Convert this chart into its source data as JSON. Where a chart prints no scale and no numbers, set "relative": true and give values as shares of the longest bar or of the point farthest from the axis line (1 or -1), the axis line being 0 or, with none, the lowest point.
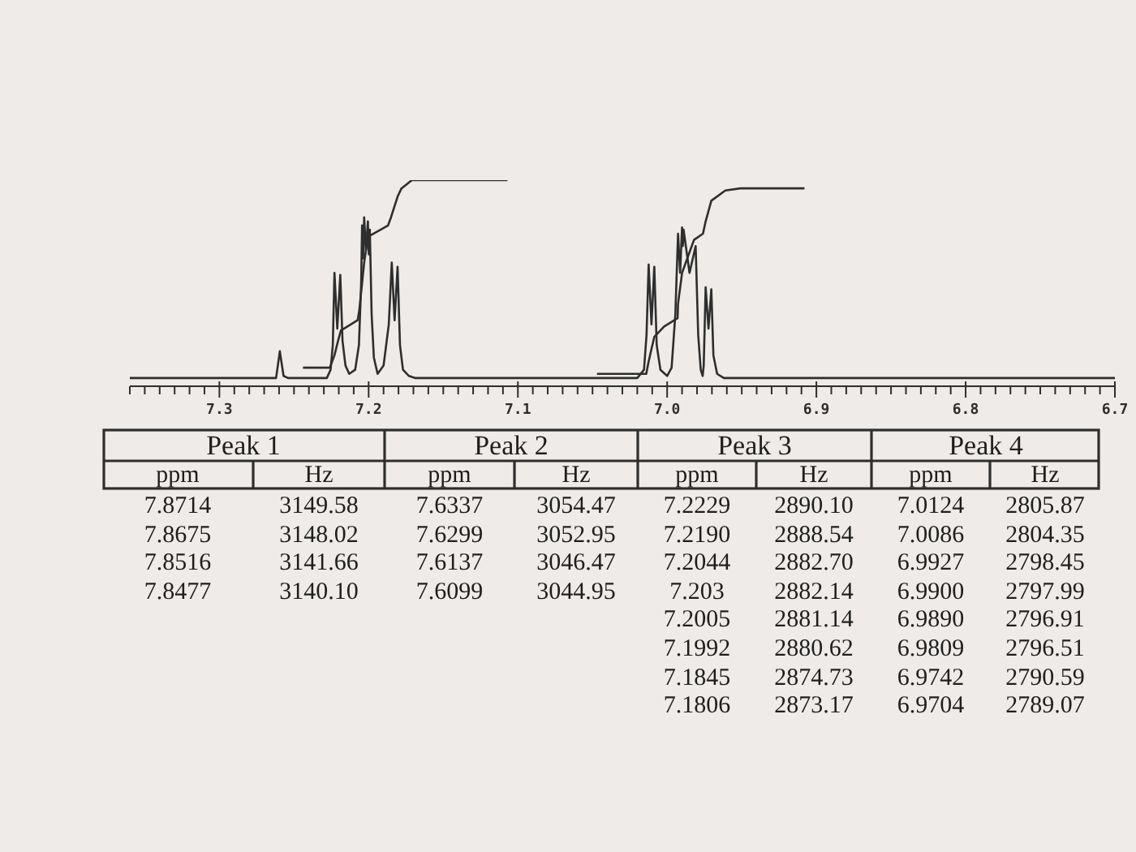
{
  "chart_data": {
    "type": "line",
    "relative": true,
    "xlim": [
      7.36,
      6.7
    ],
    "xticks": [
      {
        "value": 7.36,
        "label": null
      },
      {
        "value": 7.35,
        "label": null
      },
      {
        "value": 7.34,
        "label": null
      },
      {
        "value": 7.33,
        "label": null
      },
      {
        "value": 7.32,
        "label": null
      },
      {
        "value": 7.31,
        "label": null
      },
      7.3,
      {
        "value": 7.29,
        "label": null
      },
      {
        "value": 7.28,
        "label": null
      },
      {
        "value": 7.27,
        "label": null
      },
      {
        "value": 7.26,
        "label": null
      },
      {
        "value": 7.25,
        "label": null
      },
      {
        "value": 7.24,
        "label": null
      },
      {
        "value": 7.23,
        "label": null
      },
      {
        "value": 7.22,
        "label": null
      },
      {
        "value": 7.21,
        "label": null
      },
      7.2,
      {
        "value": 7.19,
        "label": null
      },
      {
        "value": 7.18,
        "label": null
      },
      {
        "value": 7.17,
        "label": null
      },
      {
        "value": 7.16,
        "label": null
      },
      {
        "value": 7.15,
        "label": null
      },
      {
        "value": 7.14,
        "label": null
      },
      {
        "value": 7.13,
        "label": null
      },
      {
        "value": 7.12,
        "label": null
      },
      {
        "value": 7.11,
        "label": null
      },
      7.1,
      {
        "value": 7.09,
        "label": null
      },
      {
        "value": 7.08,
        "label": null
      },
      {
        "value": 7.07,
        "label": null
      },
      {
        "value": 7.06,
        "label": null
      },
      {
        "value": 7.05,
        "label": null
      },
      {
        "value": 7.04,
        "label": null
      },
      {
        "value": 7.03,
        "label": null
      },
      {
        "value": 7.02,
        "label": null
      },
      {
        "value": 7.01,
        "label": null
      },
      {
        "value": 7.0,
        "label": "7.0"
      },
      {
        "value": 6.99,
        "label": null
      },
      {
        "value": 6.98,
        "label": null
      },
      {
        "value": 6.97,
        "label": null
      },
      {
        "value": 6.96,
        "label": null
      },
      {
        "value": 6.95,
        "label": null
      },
      {
        "value": 6.94,
        "label": null
      },
      {
        "value": 6.93,
        "label": null
      },
      {
        "value": 6.92,
        "label": null
      },
      {
        "value": 6.91,
        "label": null
      },
      6.9,
      {
        "value": 6.89,
        "label": null
      },
      {
        "value": 6.88,
        "label": null
      },
      {
        "value": 6.87,
        "label": null
      },
      {
        "value": 6.86,
        "label": null
      },
      {
        "value": 6.85,
        "label": null
      },
      {
        "value": 6.84,
        "label": null
      },
      {
        "value": 6.83,
        "label": null
      },
      {
        "value": 6.82,
        "label": null
      },
      {
        "value": 6.81,
        "label": null
      },
      6.8,
      {
        "value": 6.79,
        "label": null
      },
      {
        "value": 6.78,
        "label": null
      },
      {
        "value": 6.77,
        "label": null
      },
      {
        "value": 6.76,
        "label": null
      },
      {
        "value": 6.75,
        "label": null
      },
      {
        "value": 6.74,
        "label": null
      },
      {
        "value": 6.73,
        "label": null
      },
      {
        "value": 6.72,
        "label": null
      },
      {
        "value": 6.71,
        "label": null
      },
      6.7
    ],
    "series": [
      {
        "color": "#2e2e2e",
        "x": [
          7.36,
          7.262,
          7.2595,
          7.257,
          7.254,
          7.228,
          7.2255,
          7.224,
          7.2229,
          7.221,
          7.219,
          7.2175,
          7.2155,
          7.213,
          7.209,
          7.2065,
          7.205,
          7.2044,
          7.2037,
          7.203,
          7.2018,
          7.2005,
          7.1999,
          7.1992,
          7.198,
          7.1965,
          7.194,
          7.19,
          7.1865,
          7.1845,
          7.1826,
          7.1806,
          7.179,
          7.177,
          7.173,
          7.169,
          7.02,
          7.0155,
          7.0138,
          7.0124,
          7.0105,
          7.0086,
          7.007,
          7.0045,
          7.0,
          6.997,
          6.9945,
          6.9927,
          6.9913,
          6.99,
          6.9895,
          6.989,
          6.985,
          6.9809,
          6.9792,
          6.9775,
          6.9762,
          6.9755,
          6.9742,
          6.9723,
          6.9704,
          6.969,
          6.9665,
          6.962,
          6.7
        ],
        "values": [
          0.04,
          0.04,
          0.17,
          0.05,
          0.04,
          0.04,
          0.08,
          0.2,
          0.55,
          0.28,
          0.54,
          0.22,
          0.1,
          0.06,
          0.08,
          0.2,
          0.5,
          0.78,
          0.62,
          0.82,
          0.66,
          0.8,
          0.64,
          0.76,
          0.35,
          0.14,
          0.06,
          0.1,
          0.3,
          0.6,
          0.32,
          0.58,
          0.2,
          0.08,
          0.05,
          0.04,
          0.04,
          0.08,
          0.25,
          0.59,
          0.3,
          0.58,
          0.2,
          0.08,
          0.05,
          0.09,
          0.35,
          0.74,
          0.55,
          0.77,
          0.68,
          0.76,
          0.55,
          0.68,
          0.25,
          0.08,
          0.05,
          0.1,
          0.48,
          0.28,
          0.47,
          0.15,
          0.06,
          0.04,
          0.04
        ]
      },
      {
        "color": "#2e2e2e",
        "x": [
          7.244,
          7.226,
          7.2229,
          7.2205,
          7.2186,
          7.2074,
          7.2064,
          7.2044,
          7.203,
          7.201,
          7.1993,
          7.187,
          7.185,
          7.1806,
          7.178,
          7.171,
          7.107,
          7.08,
          7.047,
          7.014,
          7.0124,
          7.0086,
          7.002,
          6.993,
          6.9927,
          6.99,
          6.982,
          6.976,
          6.9742,
          6.9704,
          6.961,
          6.951,
          6.908
        ],
        "values": [
          0.09,
          0.09,
          0.15,
          0.22,
          0.27,
          0.32,
          0.36,
          0.5,
          0.6,
          0.7,
          0.73,
          0.78,
          0.82,
          0.92,
          0.96,
          1.0,
          1.0,
          null,
          0.06,
          0.06,
          0.12,
          0.24,
          0.29,
          0.33,
          0.4,
          0.55,
          0.71,
          0.74,
          0.8,
          0.9,
          0.95,
          0.96,
          0.96
        ]
      }
    ],
    "annotations": [
      "Peak 1",
      "Peak 2",
      "Peak 3",
      "Peak 4",
      "ppm",
      "Hz",
      "ppm",
      "Hz",
      "ppm",
      "Hz",
      "ppm",
      "Hz",
      "7.8714\n7.8675\n7.8516\n7.8477",
      "3149.58\n3148.02\n3141.66\n3140.10",
      "7.6337\n7.6299\n7.6137\n7.6099",
      "3054.47\n3052.95\n3046.47\n3044.95",
      "7.2229\n7.2190\n7.2044\n7.203\n7.2005\n7.1992\n7.1845\n7.1806",
      "2890.10\n2888.54\n2882.70\n2882.14\n2881.14\n2880.62\n2874.73\n2873.17",
      "7.0124\n7.0086\n6.9927\n6.9900\n6.9890\n6.9809\n6.9742\n6.9704",
      "2805.87\n2804.35\n2798.45\n2797.99\n2796.91\n2796.51\n2790.59\n2789.07"
    ]
  }
}
